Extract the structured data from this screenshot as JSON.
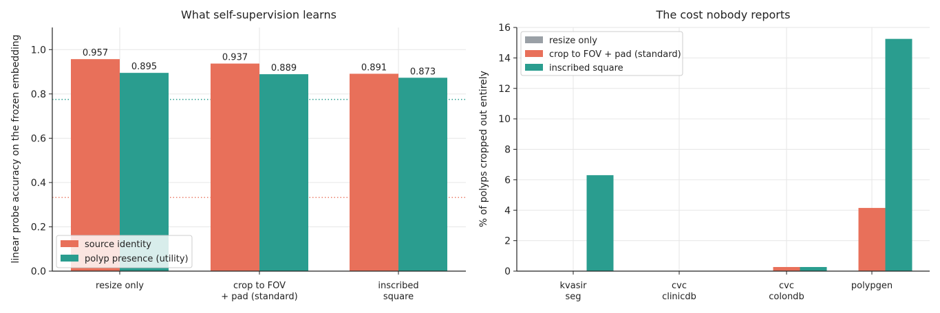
{
  "colors": {
    "orange": "#e8705a",
    "teal": "#2a9d8f",
    "gray": "#9aa0a6",
    "axis": "#222222",
    "grid": "#e6e6e6"
  },
  "chart_data": [
    {
      "type": "bar",
      "title": "What self-supervision learns",
      "xlabel": "",
      "ylabel": "linear probe accuracy on the frozen embedding",
      "ylim": [
        0,
        1.1
      ],
      "yticks": [
        "0.0",
        "0.2",
        "0.4",
        "0.6",
        "0.8",
        "1.0"
      ],
      "categories": [
        [
          "resize only"
        ],
        [
          "crop to FOV",
          "+ pad (standard)"
        ],
        [
          "inscribed",
          "square"
        ]
      ],
      "series": [
        {
          "name": "source identity",
          "color": "#e8705a",
          "values": [
            0.957,
            0.937,
            0.891
          ],
          "labels": [
            "0.957",
            "0.937",
            "0.891"
          ]
        },
        {
          "name": "polyp presence (utility)",
          "color": "#2a9d8f",
          "values": [
            0.895,
            0.889,
            0.873
          ],
          "labels": [
            "0.895",
            "0.889",
            "0.873"
          ]
        }
      ],
      "reference_lines": [
        {
          "value": 0.775,
          "color": "#2a9d8f",
          "style": "dotted"
        },
        {
          "value": 0.333,
          "color": "#e8705a",
          "style": "dotted"
        }
      ],
      "grid": true,
      "legend_position": "lower-left"
    },
    {
      "type": "bar",
      "title": "The cost nobody reports",
      "xlabel": "",
      "ylabel": "% of polyps cropped out entirely",
      "ylim": [
        0,
        16
      ],
      "yticks": [
        "0",
        "2",
        "4",
        "6",
        "8",
        "10",
        "12",
        "14",
        "16"
      ],
      "categories": [
        [
          "kvasir",
          "seg"
        ],
        [
          "cvc",
          "clinicdb"
        ],
        [
          "cvc",
          "colondb"
        ],
        [
          "polypgen"
        ]
      ],
      "series": [
        {
          "name": "resize only",
          "color": "#9aa0a6",
          "values": [
            0,
            0,
            0,
            0
          ]
        },
        {
          "name": "crop to FOV + pad (standard)",
          "color": "#e8705a",
          "values": [
            0,
            0,
            0.27,
            4.15
          ]
        },
        {
          "name": "inscribed square",
          "color": "#2a9d8f",
          "values": [
            6.3,
            0,
            0.27,
            15.25
          ]
        }
      ],
      "grid": true,
      "legend_position": "top-left"
    }
  ]
}
